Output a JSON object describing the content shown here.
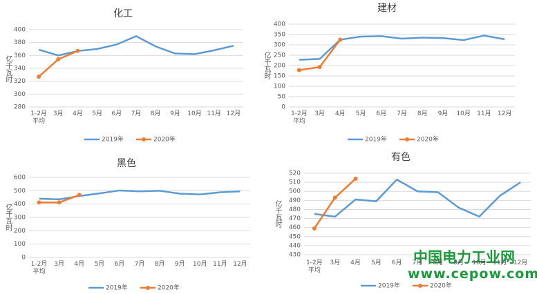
{
  "chart_data": [
    {
      "type": "line",
      "title": "化工",
      "ylabel": "亿千瓦时",
      "categories": [
        "1-2月\n平均",
        "3月",
        "4月",
        "5月",
        "6月",
        "7月",
        "8月",
        "9月",
        "10月",
        "11月",
        "12月"
      ],
      "series": [
        {
          "name": "2019年",
          "color": "#5b9bd5",
          "marker": false,
          "values": [
            369,
            360,
            367,
            370,
            377,
            390,
            374,
            363,
            362,
            368,
            375
          ]
        },
        {
          "name": "2020年",
          "color": "#ed7d31",
          "marker": true,
          "values": [
            327,
            354,
            367,
            null,
            null,
            null,
            null,
            null,
            null,
            null,
            null
          ]
        }
      ],
      "ylim": [
        280,
        400
      ],
      "yticks": [
        280,
        300,
        320,
        340,
        360,
        380,
        400
      ],
      "grid": true,
      "legend": "bottom"
    },
    {
      "type": "line",
      "title": "建材",
      "ylabel": "亿千瓦时",
      "categories": [
        "1-2月\n平均",
        "3月",
        "4月",
        "5月",
        "6月",
        "7月",
        "8月",
        "9月",
        "10月",
        "11月",
        "12月"
      ],
      "series": [
        {
          "name": "2019年",
          "color": "#5b9bd5",
          "marker": false,
          "values": [
            228,
            232,
            325,
            340,
            342,
            330,
            335,
            333,
            323,
            345,
            327
          ]
        },
        {
          "name": "2020年",
          "color": "#ed7d31",
          "marker": true,
          "values": [
            178,
            193,
            325,
            null,
            null,
            null,
            null,
            null,
            null,
            null,
            null
          ]
        }
      ],
      "ylim": [
        0,
        400
      ],
      "yticks": [
        0,
        50,
        100,
        150,
        200,
        250,
        300,
        350,
        400
      ],
      "grid": true,
      "legend": "bottom"
    },
    {
      "type": "line",
      "title": "黑色",
      "ylabel": "亿千瓦时",
      "categories": [
        "1-2月\n平均",
        "3月",
        "4月",
        "5月",
        "6月",
        "7月",
        "8月",
        "9月",
        "10月",
        "11月",
        "12月"
      ],
      "series": [
        {
          "name": "2019年",
          "color": "#5b9bd5",
          "marker": false,
          "values": [
            440,
            435,
            460,
            480,
            502,
            495,
            500,
            478,
            472,
            488,
            495
          ]
        },
        {
          "name": "2020年",
          "color": "#ed7d31",
          "marker": true,
          "values": [
            412,
            412,
            468,
            null,
            null,
            null,
            null,
            null,
            null,
            null,
            null
          ]
        }
      ],
      "ylim": [
        0,
        600
      ],
      "yticks": [
        0,
        100,
        200,
        300,
        400,
        500,
        600
      ],
      "grid": true,
      "legend": "bottom"
    },
    {
      "type": "line",
      "title": "有色",
      "ylabel": "亿千瓦时",
      "categories": [
        "1-2月\n平均",
        "3月",
        "4月",
        "5月",
        "6月",
        "7月",
        "8月",
        "9月",
        "10月",
        "11月",
        "12月"
      ],
      "series": [
        {
          "name": "2019年",
          "color": "#5b9bd5",
          "marker": false,
          "values": [
            475,
            472,
            491,
            489,
            513,
            500,
            499,
            482,
            472,
            495,
            510
          ]
        },
        {
          "name": "2020年",
          "color": "#ed7d31",
          "marker": true,
          "values": [
            459,
            493,
            514,
            null,
            null,
            null,
            null,
            null,
            null,
            null,
            null
          ]
        }
      ],
      "ylim": [
        430,
        520
      ],
      "yticks": [
        430,
        440,
        450,
        460,
        470,
        480,
        490,
        500,
        510,
        520
      ],
      "grid": true,
      "legend": "bottom"
    }
  ],
  "watermark": {
    "name": "中国电力工业网",
    "url": "www.cepow.com"
  }
}
